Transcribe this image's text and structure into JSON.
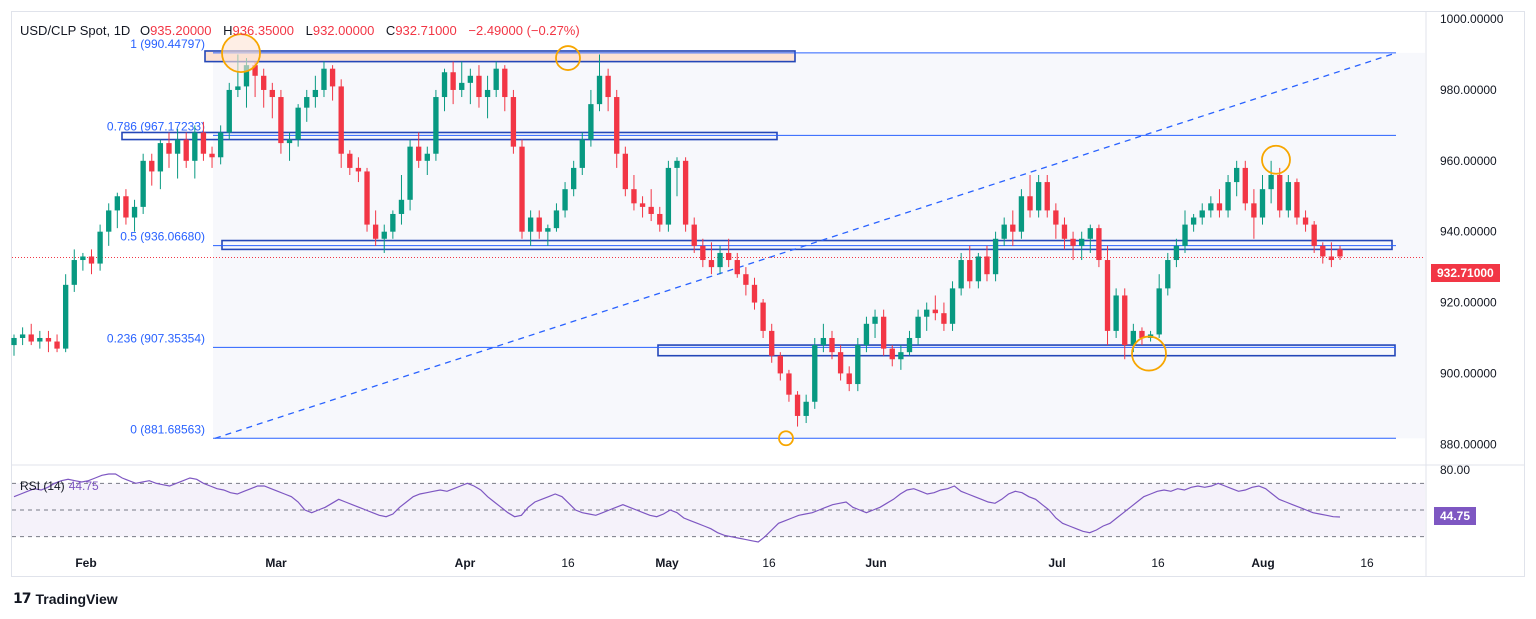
{
  "header": {
    "symbol": "USD/CLP Spot, 1D",
    "open_label": "O",
    "open": "935.20000",
    "high_label": "H",
    "high": "936.35000",
    "low_label": "L",
    "low": "932.00000",
    "close_label": "C",
    "close": "932.71000",
    "change": "−2.49000 (−0.27%)"
  },
  "price_tag": "932.71000",
  "rsi": {
    "label": "RSI (14)",
    "value": "44.75"
  },
  "brand": {
    "name": "TradingView",
    "logo": "tradingview-logo"
  },
  "colors": {
    "up": "#089981",
    "down": "#f23645",
    "fib": "#2962ff",
    "rsi": "#7e57c2",
    "marker": "#f7a600",
    "zone_fill": "#fde2d3",
    "zone_border": "#1e3a8a",
    "box_border": "#2447b8"
  },
  "chart_data": {
    "type": "candlestick",
    "title": "USD/CLP Spot, 1D",
    "y_axis": {
      "min": 875,
      "max": 1002,
      "ticks": [
        "1000.00000",
        "980.00000",
        "960.00000",
        "940.00000",
        "920.00000",
        "900.00000",
        "880.00000"
      ],
      "tick_values": [
        1000,
        980,
        960,
        940,
        920,
        900,
        880
      ]
    },
    "x_axis": {
      "ticks": [
        "Feb",
        "Mar",
        "Apr",
        "16",
        "May",
        "16",
        "Jun",
        "Jul",
        "16",
        "Aug",
        "16"
      ]
    },
    "last_price": 932.71,
    "candles": [
      [
        908,
        911,
        905,
        910
      ],
      [
        910,
        913,
        908,
        911
      ],
      [
        911,
        914,
        908,
        909
      ],
      [
        909,
        912,
        907,
        910
      ],
      [
        910,
        912,
        906,
        909
      ],
      [
        909,
        911,
        906,
        907
      ],
      [
        907,
        928,
        906,
        925
      ],
      [
        925,
        935,
        923,
        932
      ],
      [
        932,
        934,
        929,
        933
      ],
      [
        933,
        935,
        928,
        931
      ],
      [
        931,
        942,
        929,
        940
      ],
      [
        940,
        948,
        936,
        946
      ],
      [
        946,
        951,
        941,
        950
      ],
      [
        950,
        952,
        942,
        944
      ],
      [
        944,
        949,
        940,
        947
      ],
      [
        947,
        962,
        945,
        960
      ],
      [
        960,
        962,
        953,
        957
      ],
      [
        957,
        966,
        952,
        965
      ],
      [
        965,
        968,
        958,
        962
      ],
      [
        962,
        969,
        955,
        966
      ],
      [
        966,
        968,
        958,
        960
      ],
      [
        960,
        970,
        955,
        968
      ],
      [
        968,
        971,
        960,
        962
      ],
      [
        962,
        964,
        958,
        961
      ],
      [
        961,
        970,
        959,
        968
      ],
      [
        968,
        982,
        966,
        980
      ],
      [
        980,
        990,
        978,
        981
      ],
      [
        981,
        989,
        975,
        987
      ],
      [
        987,
        988,
        978,
        984
      ],
      [
        984,
        986,
        975,
        980
      ],
      [
        980,
        982,
        972,
        978
      ],
      [
        978,
        980,
        962,
        965
      ],
      [
        965,
        968,
        960,
        966
      ],
      [
        966,
        976,
        964,
        975
      ],
      [
        975,
        980,
        971,
        978
      ],
      [
        978,
        984,
        975,
        980
      ],
      [
        980,
        988,
        978,
        986
      ],
      [
        986,
        987,
        977,
        981
      ],
      [
        981,
        983,
        958,
        962
      ],
      [
        962,
        963,
        956,
        958
      ],
      [
        958,
        961,
        954,
        957
      ],
      [
        957,
        958,
        940,
        942
      ],
      [
        942,
        946,
        936,
        938
      ],
      [
        938,
        942,
        934,
        940
      ],
      [
        940,
        946,
        938,
        945
      ],
      [
        945,
        956,
        942,
        949
      ],
      [
        949,
        966,
        946,
        964
      ],
      [
        964,
        968,
        958,
        960
      ],
      [
        960,
        964,
        956,
        962
      ],
      [
        962,
        980,
        960,
        978
      ],
      [
        978,
        986,
        974,
        985
      ],
      [
        985,
        988,
        976,
        980
      ],
      [
        980,
        988,
        978,
        982
      ],
      [
        982,
        986,
        976,
        984
      ],
      [
        984,
        987,
        975,
        978
      ],
      [
        978,
        984,
        972,
        980
      ],
      [
        980,
        988,
        978,
        986
      ],
      [
        986,
        987,
        974,
        978
      ],
      [
        978,
        980,
        962,
        964
      ],
      [
        964,
        966,
        938,
        940
      ],
      [
        940,
        946,
        936,
        944
      ],
      [
        944,
        946,
        938,
        940
      ],
      [
        940,
        942,
        936,
        941
      ],
      [
        941,
        948,
        940,
        946
      ],
      [
        946,
        954,
        944,
        952
      ],
      [
        952,
        960,
        950,
        958
      ],
      [
        958,
        968,
        956,
        966
      ],
      [
        966,
        980,
        964,
        976
      ],
      [
        976,
        990,
        974,
        984
      ],
      [
        984,
        986,
        974,
        978
      ],
      [
        978,
        980,
        958,
        962
      ],
      [
        962,
        964,
        950,
        952
      ],
      [
        952,
        956,
        946,
        948
      ],
      [
        948,
        950,
        944,
        947
      ],
      [
        947,
        952,
        943,
        945
      ],
      [
        945,
        947,
        940,
        942
      ],
      [
        942,
        960,
        940,
        958
      ],
      [
        958,
        961,
        950,
        960
      ],
      [
        960,
        961,
        940,
        942
      ],
      [
        942,
        944,
        934,
        936
      ],
      [
        936,
        938,
        930,
        932
      ],
      [
        932,
        937,
        928,
        930
      ],
      [
        930,
        936,
        928,
        934
      ],
      [
        934,
        938,
        930,
        932
      ],
      [
        932,
        934,
        927,
        928
      ],
      [
        928,
        930,
        922,
        925
      ],
      [
        925,
        927,
        918,
        920
      ],
      [
        920,
        921,
        910,
        912
      ],
      [
        912,
        914,
        903,
        905
      ],
      [
        905,
        906,
        898,
        900
      ],
      [
        900,
        901,
        892,
        894
      ],
      [
        894,
        895,
        885,
        888
      ],
      [
        888,
        894,
        886,
        892
      ],
      [
        892,
        910,
        890,
        908
      ],
      [
        908,
        914,
        906,
        910
      ],
      [
        910,
        912,
        904,
        906
      ],
      [
        906,
        908,
        898,
        900
      ],
      [
        900,
        902,
        895,
        897
      ],
      [
        897,
        910,
        895,
        908
      ],
      [
        908,
        916,
        906,
        914
      ],
      [
        914,
        918,
        910,
        916
      ],
      [
        916,
        918,
        905,
        907
      ],
      [
        907,
        908,
        902,
        904
      ],
      [
        904,
        908,
        901,
        906
      ],
      [
        906,
        912,
        905,
        910
      ],
      [
        910,
        918,
        908,
        916
      ],
      [
        916,
        920,
        912,
        918
      ],
      [
        918,
        922,
        915,
        917
      ],
      [
        917,
        920,
        912,
        914
      ],
      [
        914,
        926,
        912,
        924
      ],
      [
        924,
        934,
        922,
        932
      ],
      [
        932,
        936,
        924,
        926
      ],
      [
        926,
        934,
        924,
        933
      ],
      [
        933,
        936,
        926,
        928
      ],
      [
        928,
        940,
        926,
        938
      ],
      [
        938,
        944,
        936,
        942
      ],
      [
        942,
        946,
        936,
        940
      ],
      [
        940,
        952,
        938,
        950
      ],
      [
        950,
        956,
        944,
        946
      ],
      [
        946,
        956,
        944,
        954
      ],
      [
        954,
        956,
        944,
        946
      ],
      [
        946,
        948,
        938,
        942
      ],
      [
        942,
        944,
        935,
        938
      ],
      [
        938,
        940,
        932,
        936
      ],
      [
        936,
        940,
        932,
        938
      ],
      [
        938,
        942,
        934,
        941
      ],
      [
        941,
        942,
        930,
        932
      ],
      [
        932,
        936,
        908,
        912
      ],
      [
        912,
        924,
        910,
        922
      ],
      [
        922,
        924,
        904,
        908
      ],
      [
        908,
        914,
        906,
        912
      ],
      [
        912,
        913,
        908,
        910
      ],
      [
        910,
        912,
        909,
        911
      ],
      [
        911,
        928,
        910,
        924
      ],
      [
        924,
        934,
        922,
        932
      ],
      [
        932,
        938,
        930,
        936
      ],
      [
        936,
        946,
        934,
        942
      ],
      [
        942,
        945,
        940,
        944
      ],
      [
        944,
        948,
        942,
        946
      ],
      [
        946,
        950,
        944,
        948
      ],
      [
        948,
        952,
        944,
        946
      ],
      [
        946,
        956,
        944,
        954
      ],
      [
        954,
        960,
        950,
        958
      ],
      [
        958,
        960,
        946,
        948
      ],
      [
        948,
        952,
        938,
        944
      ],
      [
        944,
        956,
        942,
        952
      ],
      [
        952,
        960,
        948,
        956
      ],
      [
        956,
        958,
        944,
        946
      ],
      [
        946,
        956,
        944,
        954
      ],
      [
        954,
        955,
        942,
        944
      ],
      [
        944,
        946,
        940,
        942
      ],
      [
        942,
        943,
        934,
        936
      ],
      [
        936,
        937,
        931,
        933
      ],
      [
        933,
        937,
        930,
        932
      ],
      [
        935,
        936,
        932,
        933
      ]
    ],
    "fib_levels": [
      {
        "label": "1 (990.44797)",
        "value": 990.44797
      },
      {
        "label": "0.786 (967.17233)",
        "value": 967.17233
      },
      {
        "label": "0.5 (936.06680)",
        "value": 936.0668
      },
      {
        "label": "0.236 (907.35354)",
        "value": 907.35354
      },
      {
        "label": "0 (881.68563)",
        "value": 881.68563
      }
    ],
    "zones": [
      {
        "low": 988,
        "high": 991,
        "filled": true
      },
      {
        "low": 966,
        "high": 968,
        "filled": false
      },
      {
        "low": 935,
        "high": 937.5,
        "filled": false
      },
      {
        "low": 905,
        "high": 908,
        "filled": false
      }
    ],
    "markers": [
      "swing-high",
      "swing-high",
      "swing-low",
      "swing-high",
      "swing-low"
    ],
    "trend_line": {
      "from": 881.68563,
      "to": 990.44797,
      "style": "dashed"
    },
    "rsi": {
      "name": "RSI (14)",
      "y_range": [
        20,
        80
      ],
      "ticks": [
        "80.00"
      ],
      "levels": [
        70,
        50,
        30
      ],
      "last": 44.75,
      "values": [
        60,
        62,
        64,
        66,
        65,
        67,
        70,
        72,
        73,
        72,
        71,
        72,
        74,
        76,
        77,
        77,
        74,
        72,
        70,
        71,
        72,
        70,
        69,
        68,
        70,
        72,
        74,
        73,
        70,
        68,
        66,
        65,
        63,
        62,
        64,
        66,
        68,
        68,
        66,
        64,
        62,
        60,
        56,
        50,
        48,
        50,
        52,
        55,
        58,
        56,
        54,
        52,
        50,
        48,
        46,
        45,
        47,
        52,
        56,
        60,
        62,
        63,
        64,
        65,
        64,
        66,
        68,
        70,
        68,
        65,
        60,
        56,
        52,
        48,
        45,
        46,
        52,
        56,
        58,
        60,
        62,
        60,
        55,
        50,
        48,
        47,
        46,
        48,
        50,
        52,
        54,
        52,
        50,
        48,
        46,
        45,
        47,
        50,
        48,
        44,
        42,
        40,
        38,
        36,
        33,
        31,
        30,
        29,
        28,
        27,
        26,
        30,
        35,
        40,
        42,
        44,
        46,
        47,
        48,
        50,
        52,
        54,
        55,
        56,
        52,
        50,
        48,
        50,
        52,
        55,
        58,
        62,
        65,
        66,
        64,
        62,
        63,
        65,
        66,
        68,
        64,
        62,
        60,
        58,
        56,
        55,
        58,
        62,
        64,
        63,
        60,
        58,
        54,
        50,
        44,
        40,
        38,
        36,
        34,
        33,
        35,
        38,
        40,
        44,
        48,
        52,
        56,
        60,
        62,
        64,
        65,
        64,
        66,
        65,
        67,
        68,
        67,
        68,
        70,
        68,
        66,
        64,
        65,
        67,
        68,
        66,
        62,
        58,
        56,
        54,
        52,
        50,
        48,
        47,
        46,
        45,
        44.75
      ]
    }
  }
}
